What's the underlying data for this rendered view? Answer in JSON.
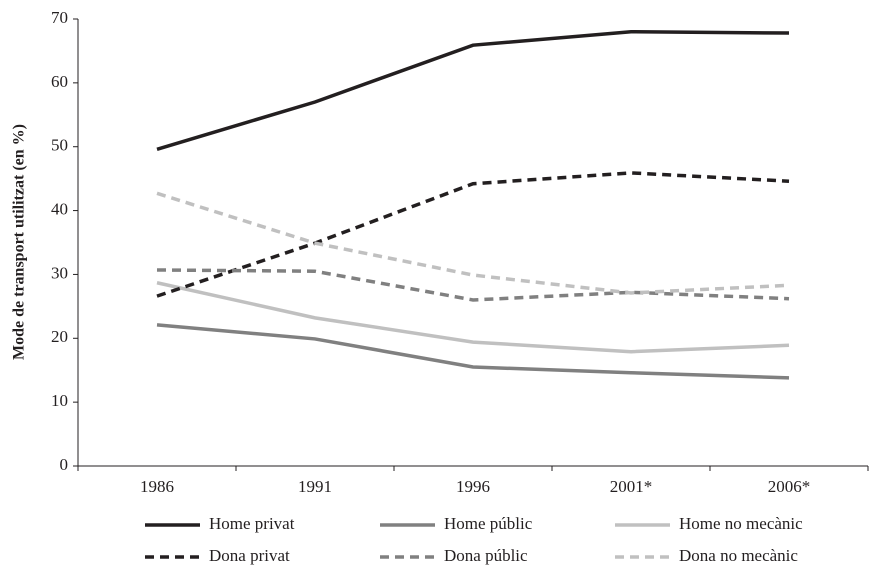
{
  "chart_data": {
    "type": "line",
    "y_label": "Mode de transport utilitzat (en %)",
    "categories": [
      "1986",
      "1991",
      "1996",
      "2001*",
      "2006*"
    ],
    "ylim": [
      0,
      70
    ],
    "yticks": [
      0,
      10,
      20,
      30,
      40,
      50,
      60,
      70
    ],
    "series": [
      {
        "name": "Home privat",
        "color": "#231f20",
        "style": "solid",
        "values": [
          49.6,
          57.0,
          65.9,
          68.0,
          67.8
        ]
      },
      {
        "name": "Home públic",
        "color": "#808080",
        "style": "solid",
        "values": [
          22.1,
          19.9,
          15.5,
          14.6,
          13.8
        ]
      },
      {
        "name": "Home no mecànic",
        "color": "#c0c0c0",
        "style": "solid",
        "values": [
          28.7,
          23.2,
          19.4,
          17.9,
          18.9
        ]
      },
      {
        "name": "Dona privat",
        "color": "#231f20",
        "style": "dashed",
        "values": [
          26.6,
          34.9,
          44.2,
          45.9,
          44.6
        ]
      },
      {
        "name": "Dona públic",
        "color": "#808080",
        "style": "dashed",
        "values": [
          30.7,
          30.5,
          26.0,
          27.2,
          26.2
        ]
      },
      {
        "name": "Dona no mecànic",
        "color": "#c0c0c0",
        "style": "dashed",
        "values": [
          42.7,
          34.9,
          29.9,
          27.1,
          28.3
        ]
      }
    ]
  }
}
